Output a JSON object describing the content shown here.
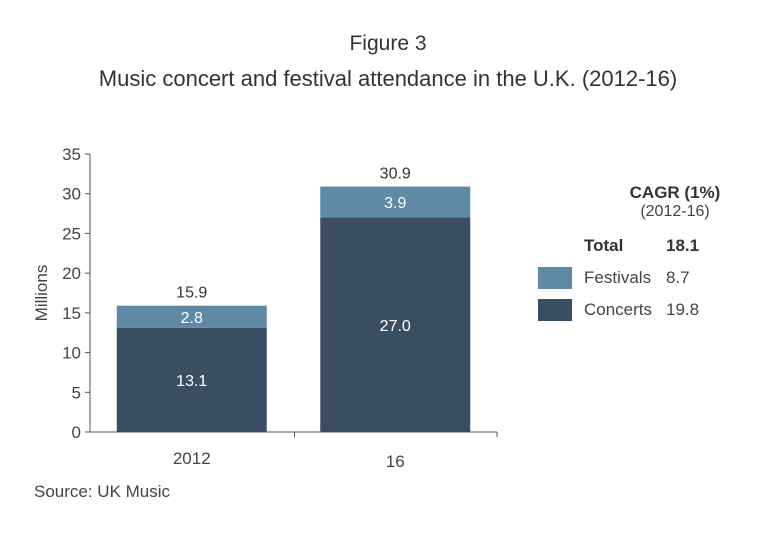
{
  "header": {
    "figure_label": "Figure 3",
    "title": "Music concert and festival attendance in the U.K. (2012-16)"
  },
  "source": "Source: UK Music",
  "colors": {
    "concerts": "#394f61",
    "festivals": "#5f8aa5",
    "axis": "#555555"
  },
  "chart_data": {
    "type": "bar",
    "stacked": true,
    "categories": [
      "2012",
      "16"
    ],
    "series": [
      {
        "name": "Concerts",
        "values": [
          13.1,
          27.0
        ]
      },
      {
        "name": "Festivals",
        "values": [
          2.8,
          3.9
        ]
      }
    ],
    "totals": [
      15.9,
      30.9
    ],
    "ylabel": "Millions",
    "ylim": [
      0,
      35
    ],
    "yticks": [
      0,
      5,
      10,
      15,
      20,
      25,
      30,
      35
    ],
    "grid": false
  },
  "cagr_panel": {
    "title": "CAGR (1%)",
    "subtitle": "(2012-16)",
    "total_label": "Total",
    "total_value": "18.1",
    "items": [
      {
        "label": "Festivals",
        "value": "8.7",
        "color": "#5f8aa5"
      },
      {
        "label": "Concerts",
        "value": "19.8",
        "color": "#394f61"
      }
    ]
  }
}
